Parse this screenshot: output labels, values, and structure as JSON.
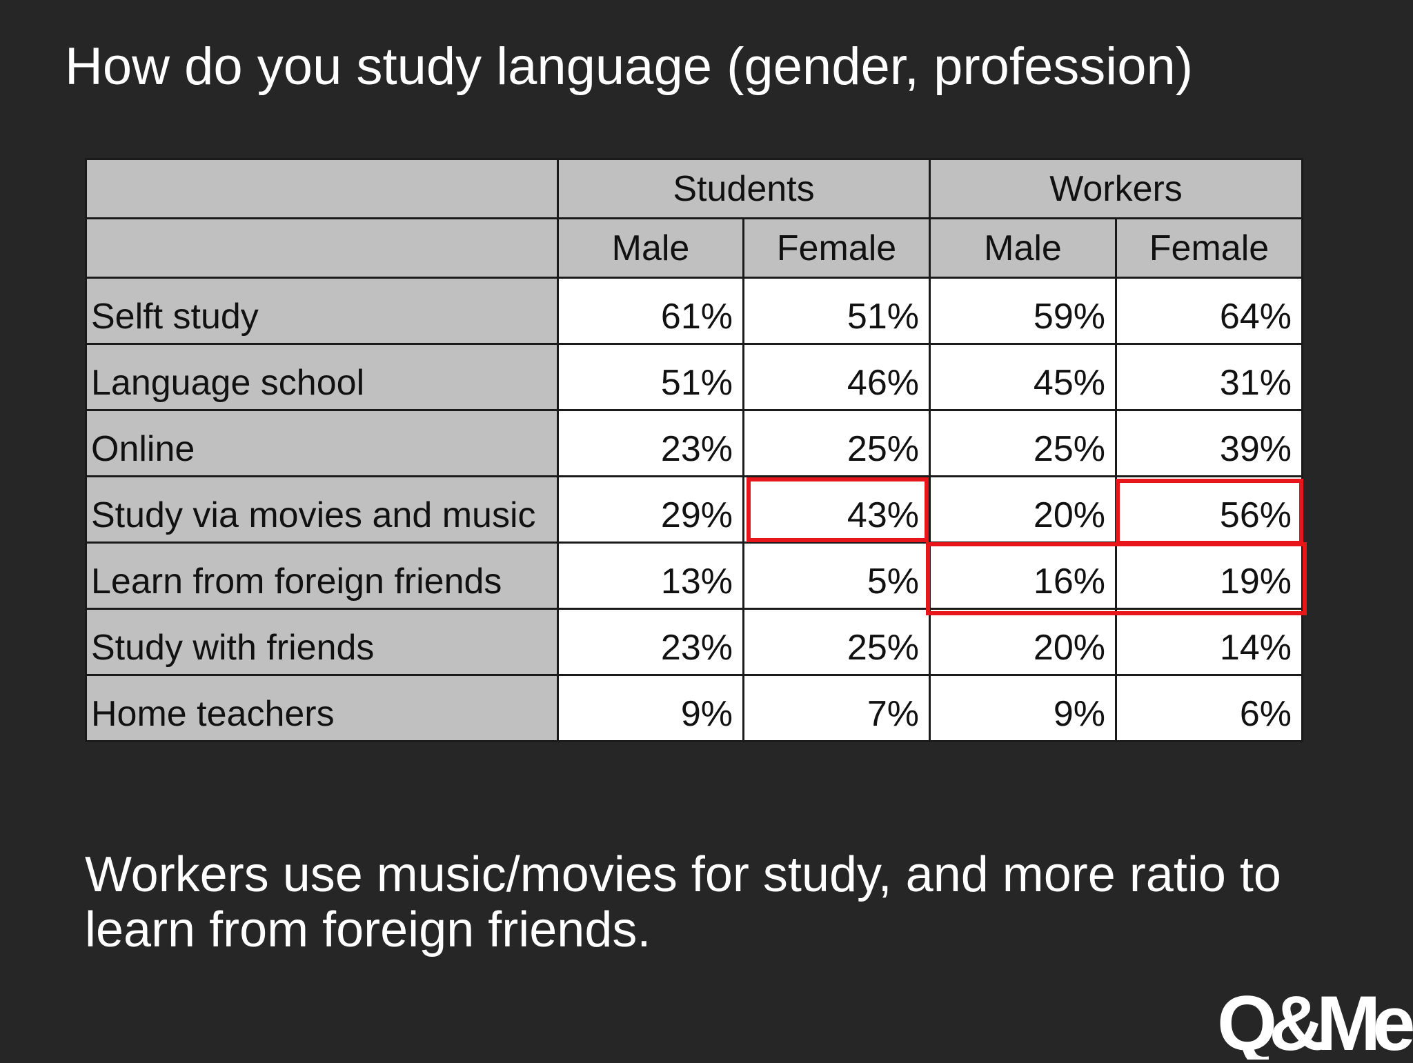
{
  "slide": {
    "title": "How do you study language (gender, profession)",
    "conclusion": "Workers use music/movies for study, and more ratio to learn from foreign friends."
  },
  "table": {
    "group_headers": [
      "Students",
      "Workers"
    ],
    "sub_headers": [
      "Male",
      "Female",
      "Male",
      "Female"
    ],
    "rows": [
      {
        "label": "Selft study",
        "values": [
          "61%",
          "51%",
          "59%",
          "64%"
        ]
      },
      {
        "label": "Language school",
        "values": [
          "51%",
          "46%",
          "45%",
          "31%"
        ]
      },
      {
        "label": "Online",
        "values": [
          "23%",
          "25%",
          "25%",
          "39%"
        ]
      },
      {
        "label": "Study via movies and music",
        "values": [
          "29%",
          "43%",
          "20%",
          "56%"
        ]
      },
      {
        "label": "Learn from foreign friends",
        "values": [
          "13%",
          "5%",
          "16%",
          "19%"
        ]
      },
      {
        "label": "Study with friends",
        "values": [
          "23%",
          "25%",
          "20%",
          "14%"
        ]
      },
      {
        "label": "Home teachers",
        "values": [
          "9%",
          "7%",
          "9%",
          "6%"
        ]
      }
    ],
    "highlight_color": "#e8161b"
  },
  "logo": {
    "text": "Q&Me"
  }
}
